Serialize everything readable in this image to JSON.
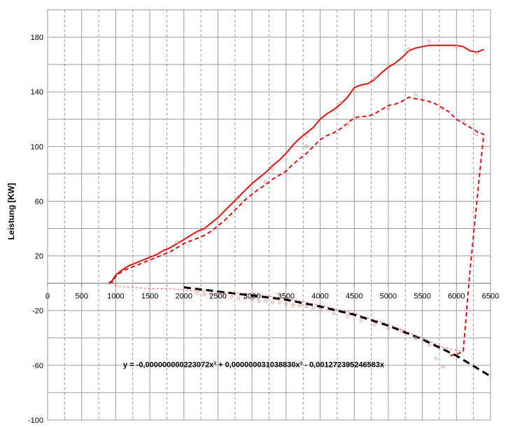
{
  "chart_data": {
    "type": "line",
    "title": "",
    "xlabel": "",
    "ylabel": "Leistung [KW]",
    "xlim": [
      0,
      6500
    ],
    "ylim": [
      -100,
      200
    ],
    "grid": true,
    "legend": "none",
    "x_ticks": [
      "0",
      "500",
      "1000",
      "1500",
      "2000",
      "2500",
      "3000",
      "3500",
      "4000",
      "4500",
      "5000",
      "5500",
      "6000",
      "6500"
    ],
    "y_ticks": [
      "-100",
      "-60",
      "-20",
      "20",
      "60",
      "100",
      "140",
      "180"
    ],
    "y_tick_values": [
      -100,
      -60,
      -20,
      20,
      60,
      100,
      140,
      180
    ],
    "x_tick_values": [
      0,
      500,
      1000,
      1500,
      2000,
      2500,
      3000,
      3500,
      4000,
      4500,
      5000,
      5500,
      6000,
      6500
    ],
    "annotations": [
      {
        "text": "y = -0,000000000223072x³ + 0,000000031038830x² - 0,001272395246583x",
        "x": 1100,
        "y": -64
      }
    ],
    "series": [
      {
        "style": "solid",
        "color": "#dd1111",
        "points": [
          [
            900,
            0
          ],
          [
            950,
            2
          ],
          [
            1000,
            6
          ],
          [
            1100,
            10
          ],
          [
            1200,
            13
          ],
          [
            1300,
            15
          ],
          [
            1400,
            17
          ],
          [
            1500,
            19
          ],
          [
            1600,
            21
          ],
          [
            1700,
            24
          ],
          [
            1800,
            26
          ],
          [
            1900,
            29
          ],
          [
            2000,
            32
          ],
          [
            2100,
            35
          ],
          [
            2200,
            38
          ],
          [
            2300,
            40
          ],
          [
            2400,
            44
          ],
          [
            2500,
            48
          ],
          [
            2600,
            53
          ],
          [
            2700,
            58
          ],
          [
            2800,
            63
          ],
          [
            2900,
            68
          ],
          [
            3000,
            73
          ],
          [
            3100,
            77
          ],
          [
            3200,
            81
          ],
          [
            3300,
            86
          ],
          [
            3400,
            90
          ],
          [
            3500,
            95
          ],
          [
            3600,
            101
          ],
          [
            3700,
            106
          ],
          [
            3800,
            110
          ],
          [
            3900,
            114
          ],
          [
            4000,
            120
          ],
          [
            4100,
            124
          ],
          [
            4200,
            127
          ],
          [
            4300,
            131
          ],
          [
            4400,
            136
          ],
          [
            4500,
            143
          ],
          [
            4600,
            145
          ],
          [
            4700,
            146
          ],
          [
            4800,
            149
          ],
          [
            4900,
            154
          ],
          [
            5000,
            158
          ],
          [
            5100,
            161
          ],
          [
            5200,
            165
          ],
          [
            5300,
            170
          ],
          [
            5400,
            172
          ],
          [
            5500,
            173
          ],
          [
            5600,
            174
          ],
          [
            5700,
            174
          ],
          [
            5800,
            174
          ],
          [
            5900,
            174
          ],
          [
            6000,
            174
          ],
          [
            6100,
            173
          ],
          [
            6200,
            170
          ],
          [
            6300,
            169
          ],
          [
            6400,
            171
          ]
        ]
      },
      {
        "style": "dashed",
        "color": "#dd1111",
        "points": [
          [
            900,
            0
          ],
          [
            950,
            1
          ],
          [
            1000,
            5
          ],
          [
            1100,
            9
          ],
          [
            1200,
            11
          ],
          [
            1300,
            13
          ],
          [
            1400,
            15
          ],
          [
            1500,
            17
          ],
          [
            1600,
            19
          ],
          [
            1700,
            21
          ],
          [
            1800,
            23
          ],
          [
            1900,
            26
          ],
          [
            2000,
            29
          ],
          [
            2100,
            31
          ],
          [
            2200,
            33
          ],
          [
            2300,
            35
          ],
          [
            2400,
            38
          ],
          [
            2500,
            42
          ],
          [
            2600,
            46
          ],
          [
            2700,
            51
          ],
          [
            2800,
            56
          ],
          [
            2900,
            61
          ],
          [
            3000,
            65
          ],
          [
            3100,
            69
          ],
          [
            3200,
            72
          ],
          [
            3300,
            76
          ],
          [
            3400,
            79
          ],
          [
            3500,
            82
          ],
          [
            3600,
            87
          ],
          [
            3700,
            91
          ],
          [
            3800,
            95
          ],
          [
            3900,
            100
          ],
          [
            4000,
            105
          ],
          [
            4100,
            108
          ],
          [
            4200,
            110
          ],
          [
            4300,
            113
          ],
          [
            4400,
            117
          ],
          [
            4500,
            121
          ],
          [
            4600,
            122
          ],
          [
            4700,
            122
          ],
          [
            4800,
            124
          ],
          [
            4900,
            127
          ],
          [
            5000,
            130
          ],
          [
            5100,
            131
          ],
          [
            5200,
            133
          ],
          [
            5300,
            136
          ],
          [
            5400,
            135
          ],
          [
            5500,
            134
          ],
          [
            5600,
            133
          ],
          [
            5700,
            131
          ],
          [
            5800,
            128
          ],
          [
            5900,
            125
          ],
          [
            6000,
            120
          ],
          [
            6100,
            117
          ],
          [
            6200,
            114
          ],
          [
            6300,
            111
          ],
          [
            6400,
            109
          ],
          [
            6300,
            60
          ],
          [
            6200,
            10
          ],
          [
            6100,
            -50
          ],
          [
            6000,
            -52
          ],
          [
            5900,
            -53
          ]
        ]
      },
      {
        "style": "long-dash",
        "color": "#000000",
        "points": [
          [
            2000,
            -3
          ],
          [
            2500,
            -6
          ],
          [
            3000,
            -9
          ],
          [
            3500,
            -12
          ],
          [
            4000,
            -17
          ],
          [
            4500,
            -23
          ],
          [
            5000,
            -31
          ],
          [
            5500,
            -41
          ],
          [
            6000,
            -53
          ],
          [
            6500,
            -68
          ]
        ]
      },
      {
        "style": "dashed-light",
        "color": "#dd1111",
        "points": [
          [
            950,
            1
          ],
          [
            1000,
            -2
          ],
          [
            1500,
            -4
          ],
          [
            1800,
            -4
          ],
          [
            2000,
            -5
          ],
          [
            2500,
            -6
          ],
          [
            3000,
            -8
          ],
          [
            3500,
            -11
          ],
          [
            4000,
            -16
          ],
          [
            4500,
            -22
          ],
          [
            5000,
            -30
          ],
          [
            5500,
            -40
          ],
          [
            5800,
            -47
          ],
          [
            6000,
            -49
          ],
          [
            6100,
            -50
          ]
        ]
      }
    ],
    "markers": [
      {
        "x": 2200,
        "y": -7
      },
      {
        "x": 2300,
        "y": -8
      },
      {
        "x": 2400,
        "y": -8
      },
      {
        "x": 2500,
        "y": -9
      },
      {
        "x": 2600,
        "y": -9
      },
      {
        "x": 2700,
        "y": -10
      },
      {
        "x": 2800,
        "y": -11
      },
      {
        "x": 2900,
        "y": -11
      },
      {
        "x": 3000,
        "y": -12
      },
      {
        "x": 3100,
        "y": -13
      },
      {
        "x": 3200,
        "y": -13
      },
      {
        "x": 3300,
        "y": -14
      },
      {
        "x": 3400,
        "y": -14
      },
      {
        "x": 3500,
        "y": -15
      },
      {
        "x": 3600,
        "y": -16
      },
      {
        "x": 3700,
        "y": -16
      },
      {
        "x": 3800,
        "y": -17
      },
      {
        "x": 3900,
        "y": -18
      },
      {
        "x": 4000,
        "y": -19
      },
      {
        "x": 4200,
        "y": -22
      },
      {
        "x": 4400,
        "y": -24
      },
      {
        "x": 4600,
        "y": -27
      },
      {
        "x": 4800,
        "y": -30
      },
      {
        "x": 5000,
        "y": -33
      },
      {
        "x": 5200,
        "y": -35
      },
      {
        "x": 5400,
        "y": -40
      },
      {
        "x": 5600,
        "y": -45
      },
      {
        "x": 5700,
        "y": -55
      },
      {
        "x": 5800,
        "y": -61
      },
      {
        "x": 1900,
        "y": 30
      },
      {
        "x": 2300,
        "y": 40
      },
      {
        "x": 2800,
        "y": 63
      },
      {
        "x": 3300,
        "y": 84
      },
      {
        "x": 3800,
        "y": 108
      },
      {
        "x": 4300,
        "y": 132
      },
      {
        "x": 4800,
        "y": 150
      },
      {
        "x": 5300,
        "y": 171
      },
      {
        "x": 5600,
        "y": 177
      },
      {
        "x": 6000,
        "y": 173
      },
      {
        "x": 6300,
        "y": 168
      },
      {
        "x": 3200,
        "y": 74
      },
      {
        "x": 3800,
        "y": 100
      },
      {
        "x": 4400,
        "y": 116
      },
      {
        "x": 5000,
        "y": 128
      },
      {
        "x": 5400,
        "y": 138
      },
      {
        "x": 5800,
        "y": 128
      },
      {
        "x": 6100,
        "y": 119
      },
      {
        "x": 6300,
        "y": 109
      }
    ]
  }
}
